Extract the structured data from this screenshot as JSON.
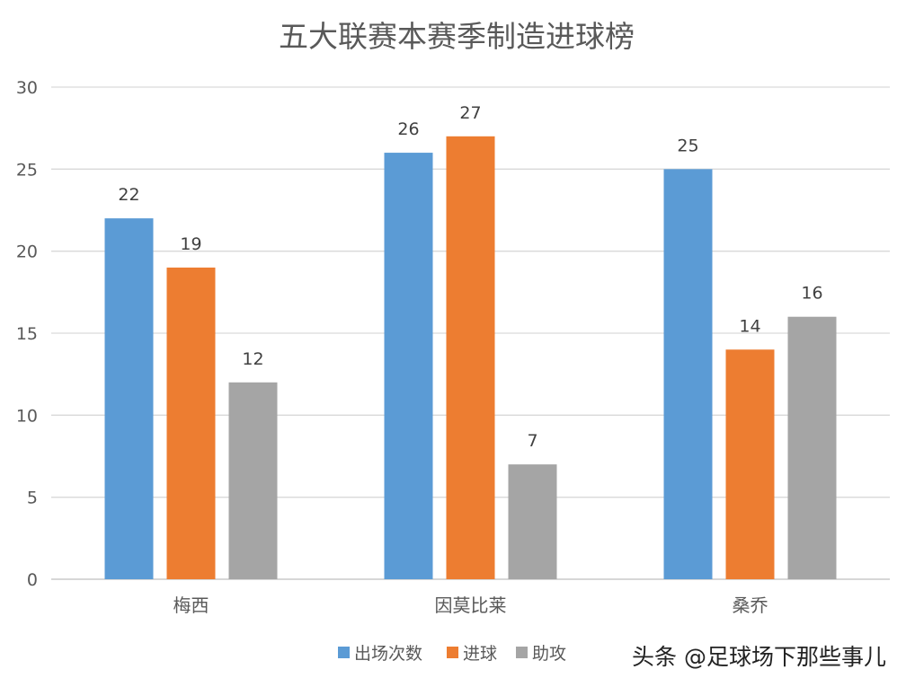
{
  "chart_data": {
    "type": "bar",
    "title": "五大联赛本赛季制造进球榜",
    "categories": [
      "梅西",
      "因莫比莱",
      "桑乔"
    ],
    "series": [
      {
        "name": "出场次数",
        "values": [
          22,
          26,
          25
        ],
        "color": "#5B9BD5"
      },
      {
        "name": "进球",
        "values": [
          19,
          27,
          14
        ],
        "color": "#ED7D31"
      },
      {
        "name": "助攻",
        "values": [
          12,
          7,
          16
        ],
        "color": "#A5A5A5"
      }
    ],
    "ylim": [
      0,
      30
    ],
    "yticks": [
      0,
      5,
      10,
      15,
      20,
      25,
      30
    ],
    "grid": true,
    "legend": "bottom",
    "data_labels": true
  },
  "watermark": "头条 @足球场下那些事儿"
}
